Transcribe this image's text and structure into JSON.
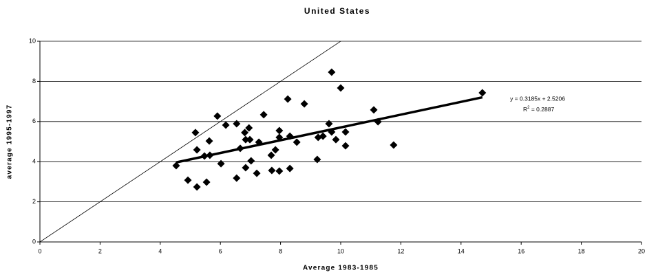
{
  "chart_data": {
    "type": "scatter",
    "title": "United States",
    "x_label": "Average 1983-1985",
    "y_label": "average 1995-1997",
    "x": [
      4.53,
      4.92,
      5.22,
      5.22,
      5.17,
      5.47,
      5.54,
      5.63,
      5.65,
      5.9,
      6.02,
      6.18,
      6.54,
      6.54,
      6.66,
      6.81,
      6.84,
      6.84,
      6.95,
      6.98,
      7.02,
      7.21,
      7.28,
      7.44,
      7.69,
      7.71,
      7.83,
      7.96,
      7.96,
      7.96,
      8.24,
      8.31,
      8.31,
      8.54,
      8.79,
      9.22,
      9.25,
      9.41,
      9.61,
      9.7,
      9.7,
      9.84,
      10.0,
      10.16,
      10.16,
      11.1,
      11.24,
      11.76,
      14.71
    ],
    "values": [
      3.8,
      3.08,
      2.74,
      4.59,
      5.45,
      4.28,
      2.98,
      5.03,
      4.32,
      6.27,
      3.9,
      5.82,
      5.89,
      3.18,
      4.66,
      5.45,
      5.1,
      3.7,
      5.68,
      5.1,
      4.04,
      3.42,
      4.97,
      6.34,
      4.32,
      3.56,
      4.59,
      5.55,
      5.21,
      3.53,
      7.12,
      5.27,
      3.66,
      4.97,
      6.88,
      4.11,
      5.21,
      5.27,
      5.89,
      5.48,
      8.46,
      5.1,
      7.67,
      5.48,
      4.79,
      6.58,
      5.99,
      4.83,
      7.43
    ],
    "color": "#000000",
    "xlim": [
      0,
      20
    ],
    "xticks": [
      0,
      2,
      4,
      6,
      8,
      10,
      12,
      14,
      16,
      18,
      20
    ],
    "ylim": [
      0,
      10
    ],
    "yticks": [
      0,
      2,
      4,
      6,
      8,
      10
    ],
    "grid": true,
    "reference_line": {
      "slope": 1,
      "intercept": 0
    },
    "trendline": {
      "slope": 0.3185,
      "intercept": 2.5206,
      "x": [
        4.53,
        14.71
      ]
    },
    "annotations": {
      "equation": "y = 0.3185x + 2.5206",
      "r2_letter": "R",
      "r2_exponent": "2",
      "r2_rest": " = 0.2887"
    }
  }
}
